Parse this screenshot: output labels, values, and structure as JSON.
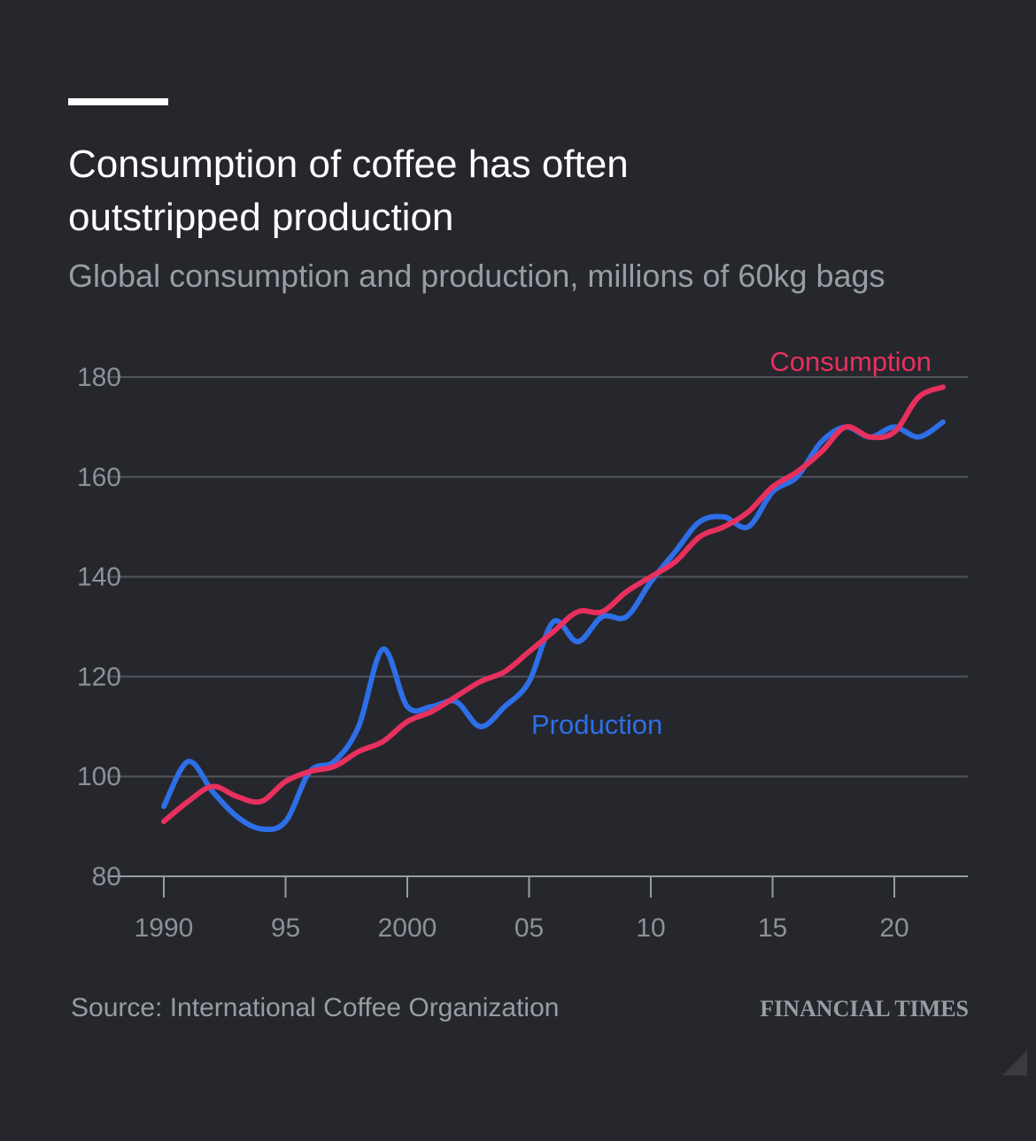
{
  "chart_data": {
    "type": "line",
    "title_line1": "Consumption of coffee has often",
    "title_line2": "outstripped production",
    "subtitle": "Global consumption and production, millions of 60kg bags",
    "x": [
      1990,
      1991,
      1992,
      1993,
      1994,
      1995,
      1996,
      1997,
      1998,
      1999,
      2000,
      2001,
      2002,
      2003,
      2004,
      2005,
      2006,
      2007,
      2008,
      2009,
      2010,
      2011,
      2012,
      2013,
      2014,
      2015,
      2016,
      2017,
      2018,
      2019,
      2020,
      2021,
      2022
    ],
    "xlim": [
      1990,
      2022.5
    ],
    "x_ticks": [
      1990,
      1995,
      2000,
      2005,
      2010,
      2015,
      2020
    ],
    "x_tick_labels": [
      "1990",
      "95",
      "2000",
      "05",
      "10",
      "15",
      "20"
    ],
    "ylim": [
      80,
      180
    ],
    "y_ticks": [
      80,
      100,
      120,
      140,
      160,
      180
    ],
    "y_tick_labels": [
      "80",
      "100",
      "120",
      "140",
      "160",
      "180"
    ],
    "series": [
      {
        "name": "Consumption",
        "color": "#e8305e",
        "values": [
          91,
          95,
          98,
          96,
          95,
          99,
          101,
          102,
          105,
          107,
          111,
          113,
          116,
          119,
          121,
          125,
          129,
          133,
          133,
          137,
          140,
          143,
          148,
          150,
          153,
          158,
          161,
          165,
          170,
          168,
          169,
          176,
          178
        ]
      },
      {
        "name": "Production",
        "color": "#2e6fe8",
        "values": [
          94,
          103,
          97,
          92,
          89.5,
          91,
          101,
          103,
          110,
          125.5,
          114,
          114,
          115,
          110,
          114,
          119,
          131,
          127,
          132,
          132,
          139,
          145,
          151,
          152,
          150,
          157,
          160,
          167,
          170,
          168,
          170,
          168,
          171
        ]
      }
    ],
    "series_labels": {
      "consumption": "Consumption",
      "production": "Production"
    },
    "source": "Source: International Coffee Organization",
    "publisher": "FINANCIAL TIMES",
    "colors": {
      "background": "#25272d",
      "consumption": "#e8305e",
      "production": "#2e6fe8",
      "grid": "#52545b"
    }
  }
}
